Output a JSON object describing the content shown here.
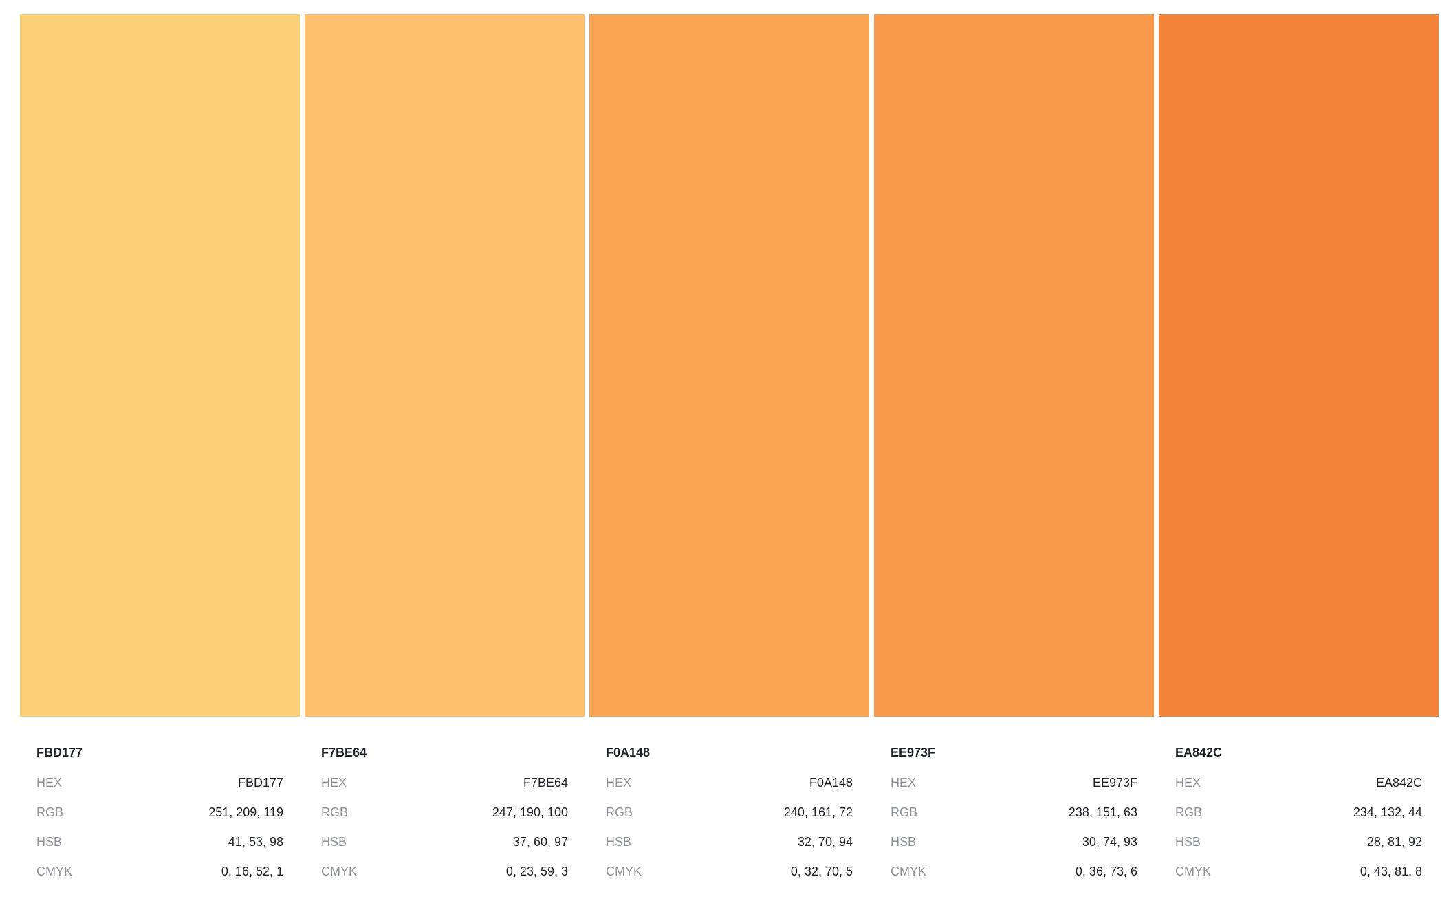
{
  "labels": {
    "hex": "HEX",
    "rgb": "RGB",
    "hsb": "HSB",
    "cmyk": "CMYK"
  },
  "colors": [
    {
      "name": "FBD177",
      "swatch": "#FBD177",
      "hex": "FBD177",
      "rgb": "251, 209, 119",
      "hsb": "41, 53, 98",
      "cmyk": "0, 16, 52, 1"
    },
    {
      "name": "F7BE64",
      "swatch": "#FEBF6E",
      "hex": "F7BE64",
      "rgb": "247, 190, 100",
      "hsb": "37, 60, 97",
      "cmyk": "0, 23, 59, 3"
    },
    {
      "name": "F0A148",
      "swatch": "#F9A452",
      "hex": "F0A148",
      "rgb": "240, 161, 72",
      "hsb": "32, 70, 94",
      "cmyk": "0, 32, 70, 5"
    },
    {
      "name": "EE973F",
      "swatch": "#F8994B",
      "hex": "EE973F",
      "rgb": "238, 151, 63",
      "hsb": "30, 74, 93",
      "cmyk": "0, 36, 73, 6"
    },
    {
      "name": "EA842C",
      "swatch": "#F3843A",
      "hex": "EA842C",
      "rgb": "234, 132, 44",
      "hsb": "28, 81, 92",
      "cmyk": "0, 43, 81, 8"
    }
  ]
}
